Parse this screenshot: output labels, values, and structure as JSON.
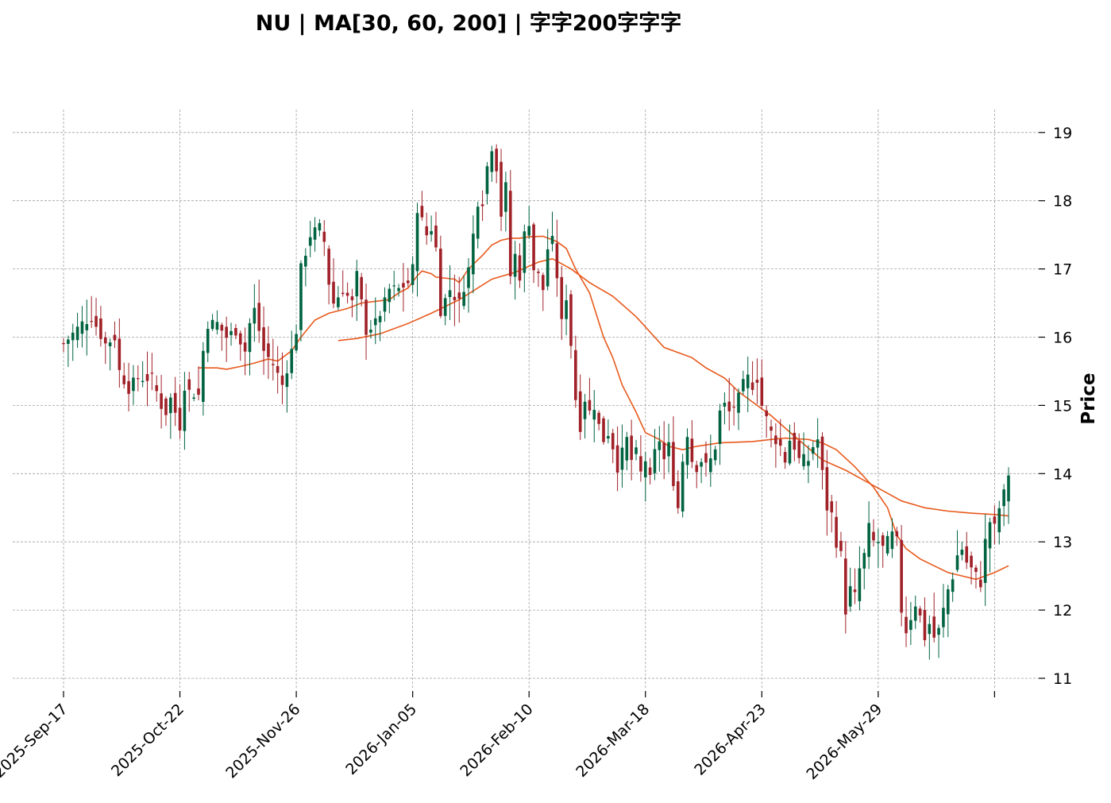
{
  "chart_data": {
    "type": "candlestick",
    "title": "NU  |  MA[30, 60, 200]  |  字字200字字字",
    "ylabel": "Price",
    "ylim": [
      10.8,
      19.4
    ],
    "yticks": [
      11,
      12,
      13,
      14,
      15,
      16,
      17,
      18,
      19
    ],
    "xtick_labels": [
      "2025-Sep-17",
      "2025-Oct-22",
      "2025-Nov-26",
      "2026-Jan-05",
      "2026-Feb-10",
      "2026-Mar-18",
      "2026-Apr-23",
      "2026-May-29",
      ""
    ],
    "xtick_index": [
      0,
      25,
      50,
      75,
      100,
      125,
      150,
      175,
      200
    ],
    "grid": true,
    "colors": {
      "up": "#006340",
      "down": "#a02128",
      "ma": "#e8591c"
    },
    "ohlc_anchors": [
      [
        0,
        15.9
      ],
      [
        4,
        16.2
      ],
      [
        6,
        16.3
      ],
      [
        9,
        15.9
      ],
      [
        11,
        16.0
      ],
      [
        12,
        15.5
      ],
      [
        14,
        15.25
      ],
      [
        16,
        15.4
      ],
      [
        19,
        15.4
      ],
      [
        21,
        15.0
      ],
      [
        22,
        14.9
      ],
      [
        23,
        15.1
      ],
      [
        25,
        14.7
      ],
      [
        26,
        15.3
      ],
      [
        27,
        15.2
      ],
      [
        29,
        15.15
      ],
      [
        30,
        15.8
      ],
      [
        31,
        16.2
      ],
      [
        33,
        16.2
      ],
      [
        35,
        16.0
      ],
      [
        37,
        16.1
      ],
      [
        39,
        15.8
      ],
      [
        40,
        16.2
      ],
      [
        41,
        16.4
      ],
      [
        43,
        15.8
      ],
      [
        45,
        15.6
      ],
      [
        47,
        15.3
      ],
      [
        49,
        15.8
      ],
      [
        50,
        16.1
      ],
      [
        51,
        17.0
      ],
      [
        53,
        17.5
      ],
      [
        55,
        17.6
      ],
      [
        56,
        17.4
      ],
      [
        57,
        16.8
      ],
      [
        58,
        16.5
      ],
      [
        60,
        16.7
      ],
      [
        62,
        16.5
      ],
      [
        63,
        16.9
      ],
      [
        65,
        16.1
      ],
      [
        67,
        16.2
      ],
      [
        69,
        16.5
      ],
      [
        70,
        16.7
      ],
      [
        72,
        16.7
      ],
      [
        74,
        16.8
      ],
      [
        75,
        17.0
      ],
      [
        76,
        17.9
      ],
      [
        78,
        17.5
      ],
      [
        79,
        17.6
      ],
      [
        80,
        17.3
      ],
      [
        81,
        16.4
      ],
      [
        83,
        16.7
      ],
      [
        85,
        16.5
      ],
      [
        87,
        17.0
      ],
      [
        88,
        17.5
      ],
      [
        89,
        18.0
      ],
      [
        90,
        18.0
      ],
      [
        91,
        18.5
      ],
      [
        92,
        18.8
      ],
      [
        93,
        18.5
      ],
      [
        94,
        17.8
      ],
      [
        95,
        18.2
      ],
      [
        96,
        16.9
      ],
      [
        97,
        17.2
      ],
      [
        98,
        16.9
      ],
      [
        99,
        17.5
      ],
      [
        100,
        17.7
      ],
      [
        101,
        17.0
      ],
      [
        102,
        16.9
      ],
      [
        103,
        16.7
      ],
      [
        104,
        17.3
      ],
      [
        105,
        17.4
      ],
      [
        106,
        16.9
      ],
      [
        107,
        16.2
      ],
      [
        108,
        16.6
      ],
      [
        109,
        15.9
      ],
      [
        110,
        15.1
      ],
      [
        111,
        14.7
      ],
      [
        112,
        15.1
      ],
      [
        113,
        14.9
      ],
      [
        114,
        15.0
      ],
      [
        115,
        14.7
      ],
      [
        116,
        14.5
      ],
      [
        117,
        14.6
      ],
      [
        118,
        14.4
      ],
      [
        119,
        14.1
      ],
      [
        120,
        14.3
      ],
      [
        121,
        14.5
      ],
      [
        122,
        14.2
      ],
      [
        123,
        14.3
      ],
      [
        124,
        14.0
      ],
      [
        125,
        14.2
      ],
      [
        126,
        13.9
      ],
      [
        127,
        14.3
      ],
      [
        128,
        14.5
      ],
      [
        129,
        14.2
      ],
      [
        130,
        14.4
      ],
      [
        131,
        13.9
      ],
      [
        132,
        13.5
      ],
      [
        133,
        14.2
      ],
      [
        134,
        14.6
      ],
      [
        135,
        14.2
      ],
      [
        136,
        14.1
      ],
      [
        137,
        14.2
      ],
      [
        138,
        14.1
      ],
      [
        139,
        14.2
      ],
      [
        140,
        14.4
      ],
      [
        141,
        14.9
      ],
      [
        142,
        15.0
      ],
      [
        143,
        14.9
      ],
      [
        144,
        15.0
      ],
      [
        145,
        15.1
      ],
      [
        146,
        15.3
      ],
      [
        147,
        15.4
      ],
      [
        148,
        15.3
      ],
      [
        149,
        15.4
      ],
      [
        150,
        15.0
      ],
      [
        151,
        14.8
      ],
      [
        152,
        14.6
      ],
      [
        153,
        14.5
      ],
      [
        154,
        14.4
      ],
      [
        155,
        14.2
      ],
      [
        156,
        14.5
      ],
      [
        157,
        14.4
      ],
      [
        158,
        14.2
      ],
      [
        160,
        14.2
      ],
      [
        161,
        14.4
      ],
      [
        162,
        14.5
      ],
      [
        163,
        14.0
      ],
      [
        164,
        13.5
      ],
      [
        165,
        13.4
      ],
      [
        166,
        13.0
      ],
      [
        167,
        12.8
      ],
      [
        168,
        12.0
      ],
      [
        169,
        12.3
      ],
      [
        170,
        12.2
      ],
      [
        171,
        12.6
      ],
      [
        172,
        12.8
      ],
      [
        173,
        13.2
      ],
      [
        174,
        13.0
      ],
      [
        175,
        13.0
      ],
      [
        176,
        12.9
      ],
      [
        177,
        13.0
      ],
      [
        178,
        13.1
      ],
      [
        179,
        13.0
      ],
      [
        180,
        12.0
      ],
      [
        181,
        11.7
      ],
      [
        182,
        11.9
      ],
      [
        183,
        12.1
      ],
      [
        184,
        11.9
      ],
      [
        185,
        11.6
      ],
      [
        186,
        11.8
      ],
      [
        187,
        11.6
      ],
      [
        188,
        11.7
      ],
      [
        189,
        12.0
      ],
      [
        190,
        12.3
      ],
      [
        191,
        12.5
      ],
      [
        192,
        12.8
      ],
      [
        193,
        12.9
      ],
      [
        194,
        12.7
      ],
      [
        195,
        12.6
      ],
      [
        196,
        12.5
      ],
      [
        197,
        12.4
      ],
      [
        198,
        13.0
      ],
      [
        199,
        13.3
      ],
      [
        200,
        13.2
      ],
      [
        201,
        13.5
      ],
      [
        202,
        13.7
      ],
      [
        203,
        14.0
      ]
    ],
    "ma30": [
      [
        29,
        15.55
      ],
      [
        33,
        15.55
      ],
      [
        35,
        15.53
      ],
      [
        38,
        15.57
      ],
      [
        41,
        15.62
      ],
      [
        44,
        15.68
      ],
      [
        46,
        15.65
      ],
      [
        49,
        15.8
      ],
      [
        51,
        16.0
      ],
      [
        54,
        16.25
      ],
      [
        57,
        16.35
      ],
      [
        61,
        16.42
      ],
      [
        64,
        16.5
      ],
      [
        70,
        16.55
      ],
      [
        72,
        16.65
      ],
      [
        74,
        16.72
      ],
      [
        76,
        16.9
      ],
      [
        77,
        16.97
      ],
      [
        79,
        16.93
      ],
      [
        80,
        16.88
      ],
      [
        84,
        16.85
      ],
      [
        85,
        16.8
      ],
      [
        87,
        17.0
      ],
      [
        90,
        17.2
      ],
      [
        92,
        17.35
      ],
      [
        94,
        17.42
      ],
      [
        96,
        17.45
      ],
      [
        98,
        17.45
      ],
      [
        100,
        17.47
      ],
      [
        103,
        17.48
      ],
      [
        106,
        17.4
      ],
      [
        108,
        17.3
      ],
      [
        110,
        17.0
      ],
      [
        113,
        16.65
      ],
      [
        116,
        16.0
      ],
      [
        118,
        15.7
      ],
      [
        120,
        15.3
      ],
      [
        123,
        14.9
      ],
      [
        125,
        14.6
      ],
      [
        128,
        14.5
      ],
      [
        130,
        14.4
      ],
      [
        133,
        14.35
      ],
      [
        136,
        14.4
      ],
      [
        141,
        14.45
      ],
      [
        148,
        14.47
      ],
      [
        152,
        14.5
      ],
      [
        155,
        14.52
      ],
      [
        160,
        14.5
      ],
      [
        163,
        14.45
      ],
      [
        166,
        14.35
      ],
      [
        170,
        14.1
      ],
      [
        174,
        13.8
      ],
      [
        177,
        13.5
      ],
      [
        179,
        13.1
      ],
      [
        181,
        12.9
      ],
      [
        184,
        12.75
      ],
      [
        187,
        12.65
      ],
      [
        190,
        12.55
      ],
      [
        193,
        12.5
      ],
      [
        196,
        12.45
      ],
      [
        200,
        12.55
      ],
      [
        203,
        12.65
      ]
    ],
    "ma60": [
      [
        59,
        15.95
      ],
      [
        63,
        15.98
      ],
      [
        68,
        16.05
      ],
      [
        74,
        16.2
      ],
      [
        79,
        16.35
      ],
      [
        85,
        16.55
      ],
      [
        92,
        16.85
      ],
      [
        97,
        16.95
      ],
      [
        102,
        17.1
      ],
      [
        105,
        17.15
      ],
      [
        109,
        17.0
      ],
      [
        113,
        16.8
      ],
      [
        118,
        16.6
      ],
      [
        123,
        16.3
      ],
      [
        129,
        15.85
      ],
      [
        135,
        15.7
      ],
      [
        138,
        15.55
      ],
      [
        142,
        15.4
      ],
      [
        145,
        15.2
      ],
      [
        149,
        15.0
      ],
      [
        152,
        14.85
      ],
      [
        157,
        14.55
      ],
      [
        163,
        14.2
      ],
      [
        168,
        14.05
      ],
      [
        172,
        13.9
      ],
      [
        176,
        13.75
      ],
      [
        180,
        13.6
      ],
      [
        185,
        13.5
      ],
      [
        190,
        13.45
      ],
      [
        195,
        13.42
      ],
      [
        200,
        13.4
      ],
      [
        203,
        13.38
      ]
    ]
  }
}
